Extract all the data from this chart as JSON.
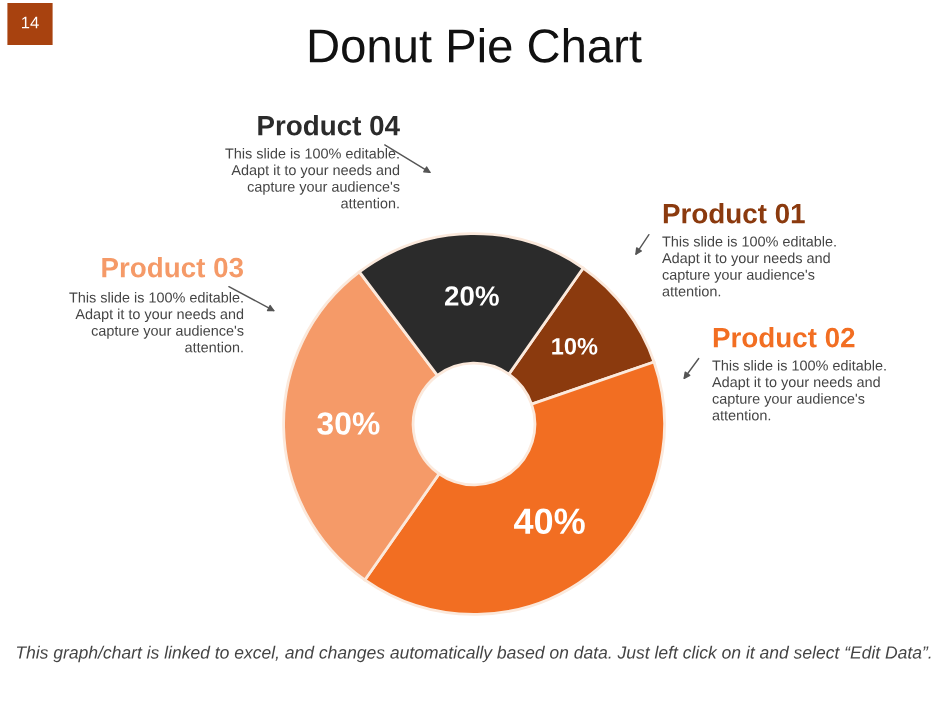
{
  "chart_data": {
    "type": "donut",
    "title": "Donut Pie Chart",
    "categories": [
      "Product 01",
      "Product 02",
      "Product 03",
      "Product 04"
    ],
    "values": [
      10,
      40,
      30,
      20
    ],
    "colors": [
      "#8b3a0e",
      "#f26e22",
      "#f59a68",
      "#2b2b2b"
    ],
    "value_labels": [
      "10%",
      "40%",
      "30%",
      "20%"
    ],
    "annotations": [
      "This slide is 100% editable. Adapt it to your needs and capture your audience's attention.",
      "This slide is 100% editable. Adapt it to your needs and capture your audience's attention.",
      "This slide is 100% editable. Adapt it to your needs and capture your audience's attention.",
      "This slide is 100% editable. Adapt it to your needs and capture your audience's attention.",
      "This graph/chart is linked to excel, and changes automatically based on data. Just left click on it and select “Edit Data”.",
      "14"
    ]
  }
}
